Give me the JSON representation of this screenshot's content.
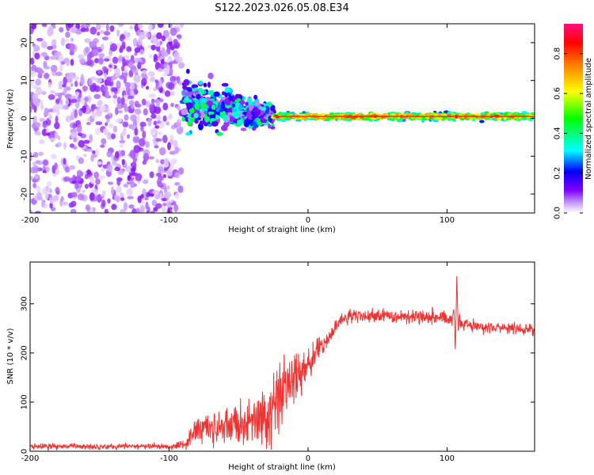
{
  "title": "S122.2023.026.05.08.E34",
  "chart_data": [
    {
      "type": "heatmap",
      "xlabel": "Height of straight line (km)",
      "ylabel": "Frequency (Hz)",
      "xlim": [
        -200,
        163
      ],
      "ylim": [
        -25,
        25
      ],
      "xticks": [
        -200,
        -100,
        0,
        100
      ],
      "yticks": [
        -20,
        -10,
        0,
        10,
        20
      ],
      "colorbar": {
        "label": "Normalized spectral amplitude",
        "range": [
          0,
          0.95
        ],
        "ticks": [
          0.0,
          0.2,
          0.4,
          0.6,
          0.8
        ],
        "colors": [
          "#ffffff",
          "#c8a0ff",
          "#8000ff",
          "#0000ff",
          "#00ffff",
          "#00ff00",
          "#ffff00",
          "#ff8000",
          "#ff0000",
          "#ff0080"
        ]
      },
      "regions": [
        {
          "x": [
            -200,
            -91
          ],
          "freq_center": 0,
          "freq_spread": 25,
          "level": 0.12,
          "description": "noise"
        },
        {
          "x": [
            -90,
            -25
          ],
          "freq_center": 4,
          "freq_spread": 6,
          "level": 0.3,
          "description": "scatter"
        },
        {
          "x": [
            -25,
            163
          ],
          "freq_center": 0.5,
          "freq_spread": 1.2,
          "level": 0.85,
          "description": "carrier line"
        }
      ]
    },
    {
      "type": "line",
      "xlabel": "Height of straight line (km)",
      "ylabel": "SNR (10 * v/v)",
      "xlim": [
        -200,
        163
      ],
      "ylim": [
        0,
        385
      ],
      "xticks": [
        -200,
        -100,
        0,
        100
      ],
      "yticks": [
        0,
        100,
        200,
        300
      ],
      "color": "#ee3333",
      "series": [
        {
          "name": "SNR",
          "x": [
            -200,
            -150,
            -100,
            -88,
            -80,
            -70,
            -60,
            -50,
            -40,
            -30,
            -25,
            -20,
            -15,
            -10,
            -5,
            0,
            5,
            10,
            15,
            20,
            25,
            30,
            40,
            50,
            60,
            70,
            80,
            90,
            100,
            104,
            105,
            106,
            107,
            108,
            109,
            110,
            120,
            130,
            140,
            150,
            163
          ],
          "y": [
            10,
            10,
            10,
            15,
            50,
            45,
            50,
            55,
            60,
            65,
            90,
            110,
            130,
            150,
            165,
            180,
            195,
            215,
            230,
            255,
            270,
            275,
            275,
            275,
            275,
            275,
            275,
            275,
            270,
            270,
            300,
            200,
            360,
            260,
            270,
            258,
            255,
            252,
            250,
            248,
            248
          ],
          "spread": [
            6,
            6,
            6,
            10,
            35,
            30,
            35,
            40,
            40,
            70,
            80,
            80,
            60,
            55,
            45,
            35,
            25,
            18,
            15,
            15,
            15,
            15,
            14,
            14,
            14,
            14,
            14,
            14,
            14,
            14,
            14,
            14,
            14,
            14,
            14,
            14,
            12,
            12,
            12,
            12,
            12
          ]
        }
      ]
    }
  ]
}
